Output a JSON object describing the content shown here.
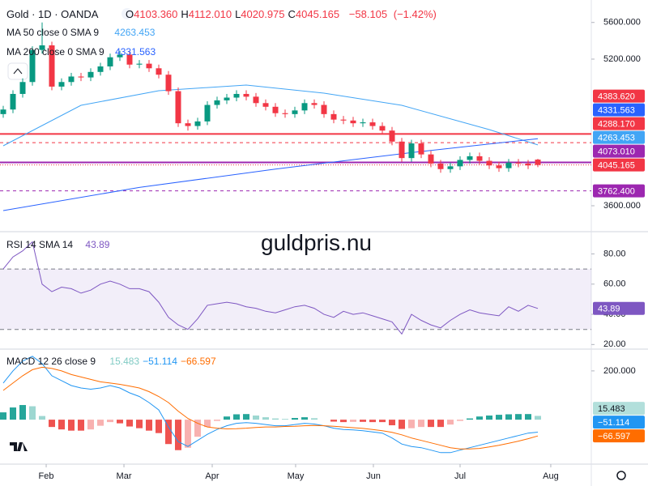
{
  "header": {
    "symbol": "Gold · 1D · OANDA",
    "ohlc_labels": [
      "O",
      "H",
      "L",
      "C"
    ],
    "ohlc_values": [
      4103.36,
      4112.01,
      4020.975,
      4045.165
    ],
    "ohlc_value_labels": [
      "4103.360",
      "4112.010",
      "4020.975",
      "4045.165"
    ],
    "change": -58.105,
    "change_label": "−58.105",
    "change_pct": -1.42,
    "change_pct_label": "(−1.42%)"
  },
  "watermark": "guldpris.nu",
  "chart_data": [
    {
      "type": "candlestick",
      "up_color": "#089981",
      "down_color": "#f23645",
      "open": [
        4600,
        4650,
        4820,
        4950,
        5300,
        5350,
        4900,
        4950,
        5010,
        5000,
        5060,
        5120,
        5220,
        5250,
        5140,
        5150,
        5100,
        5030,
        4850,
        4500,
        4470,
        4520,
        4700,
        4750,
        4780,
        4820,
        4790,
        4720,
        4680,
        4610,
        4600,
        4640,
        4720,
        4700,
        4600,
        4540,
        4530,
        4500,
        4510,
        4470,
        4420,
        4300,
        4120,
        4280,
        4160,
        4060,
        4000,
        4030,
        4100,
        4140,
        4090,
        4040,
        4010,
        4070,
        4060,
        4103.36
      ],
      "high": [
        4690,
        4860,
        4990,
        5340,
        5600,
        5390,
        4990,
        5050,
        5050,
        5100,
        5160,
        5260,
        5290,
        5290,
        5190,
        5190,
        5140,
        5070,
        4890,
        4540,
        4560,
        4740,
        4790,
        4820,
        4860,
        4860,
        4830,
        4760,
        4720,
        4650,
        4680,
        4760,
        4760,
        4740,
        4640,
        4580,
        4570,
        4550,
        4550,
        4510,
        4460,
        4340,
        4320,
        4320,
        4200,
        4100,
        4070,
        4140,
        4180,
        4180,
        4130,
        4080,
        4110,
        4110,
        4100,
        4112.01
      ],
      "low": [
        4560,
        4610,
        4780,
        4910,
        5260,
        4860,
        4860,
        4910,
        4960,
        4960,
        5020,
        5080,
        5180,
        5100,
        5100,
        5060,
        4990,
        4810,
        4460,
        4420,
        4430,
        4480,
        4660,
        4710,
        4740,
        4750,
        4680,
        4640,
        4570,
        4560,
        4560,
        4600,
        4660,
        4560,
        4500,
        4490,
        4460,
        4460,
        4430,
        4380,
        4260,
        4080,
        4080,
        4120,
        4020,
        3960,
        3960,
        3990,
        4060,
        4050,
        4000,
        3970,
        3970,
        4020,
        4000,
        4020.975
      ],
      "close": [
        4650,
        4820,
        4950,
        5300,
        5350,
        4900,
        4950,
        5010,
        5000,
        5060,
        5120,
        5220,
        5250,
        5140,
        5150,
        5100,
        5030,
        4850,
        4500,
        4470,
        4520,
        4700,
        4750,
        4780,
        4820,
        4790,
        4720,
        4680,
        4610,
        4600,
        4640,
        4720,
        4700,
        4600,
        4540,
        4530,
        4500,
        4510,
        4470,
        4420,
        4300,
        4120,
        4280,
        4160,
        4060,
        4000,
        4030,
        4100,
        4140,
        4090,
        4040,
        4010,
        4070,
        4060,
        4040,
        4045.165
      ],
      "xlim": [
        -0.333,
        60.5
      ],
      "xticks": [
        {
          "value": 4.42,
          "label": "Feb"
        },
        {
          "value": 12.42,
          "label": "Mar"
        },
        {
          "value": 21.5,
          "label": "Apr"
        },
        {
          "value": 30.08,
          "label": "May"
        },
        {
          "value": 38.08,
          "label": "Jun"
        },
        {
          "value": 47,
          "label": "Jul"
        },
        {
          "value": 56.33,
          "label": "Aug"
        }
      ],
      "ylim": [
        3326,
        5845
      ],
      "yticks": [
        {
          "value": 3600,
          "label": "3600.000"
        },
        {
          "value": 5200,
          "label": "5200.000"
        },
        {
          "value": 5600,
          "label": "5600.000"
        }
      ],
      "series": [
        {
          "name": "MA 50 close 0 SMA 9",
          "color": "#42a5f5",
          "x": [
            0,
            8,
            16,
            25,
            33,
            41,
            50,
            55
          ],
          "values": [
            4254,
            4696,
            4855,
            4917,
            4829,
            4696,
            4431,
            4263.453
          ],
          "last_label": "4263.453"
        },
        {
          "name": "MA 200 close 0 SMA 9",
          "color": "#2962ff",
          "x": [
            0,
            14,
            28,
            42,
            55
          ],
          "values": [
            3547,
            3800,
            4000,
            4180,
            4331.563
          ],
          "last_label": "4331.563"
        }
      ],
      "hlines": [
        {
          "value": 4383.62,
          "label": "4383.620",
          "color": "#f23645",
          "style": "solid"
        },
        {
          "value": 4288.17,
          "label": "4288.170",
          "color": "#f23645",
          "style": "dashed"
        },
        {
          "value": 4073.01,
          "label": "4073.010",
          "color": "#9c27b0",
          "style": "solid"
        },
        {
          "value": 4045.165,
          "label": "4045.165",
          "color": "#f23645",
          "style": "dotted"
        },
        {
          "value": 3762.4,
          "label": "3762.400",
          "color": "#9c27b0",
          "style": "dashed"
        }
      ]
    },
    {
      "type": "line",
      "ylim": [
        17.5,
        94.2
      ],
      "band": [
        30,
        70
      ],
      "yticks": [
        {
          "value": 80,
          "label": "80.00"
        },
        {
          "value": 60,
          "label": "60.00"
        },
        {
          "value": 40,
          "label": "40.00"
        },
        {
          "value": 20,
          "label": "20.00"
        }
      ],
      "series": [
        {
          "name": "RSI 14 SMA 14",
          "color": "#7e57c2",
          "values": [
            70,
            78,
            82,
            88,
            60,
            55,
            58,
            57,
            54,
            56,
            60,
            62,
            60,
            57,
            57,
            55,
            48,
            38,
            33,
            30,
            37,
            46,
            47,
            48,
            47,
            45,
            44,
            42,
            41,
            43,
            45,
            46,
            44,
            40,
            38,
            42,
            40,
            41,
            39,
            37,
            35,
            27,
            40,
            36,
            33,
            31,
            36,
            40,
            43,
            41,
            40,
            39,
            45,
            42,
            46,
            43.89
          ],
          "last_label": "43.89"
        }
      ]
    },
    {
      "type": "macd",
      "ylim": [
        -179,
        286
      ],
      "yticks": [
        {
          "value": 200,
          "label": "200.000"
        }
      ],
      "name": "MACD 12 26 close 9",
      "series": [
        {
          "name": "Histogram",
          "color": "#26a69a",
          "down_color": "#ef5350",
          "values": [
            30,
            50,
            60,
            55,
            15,
            -30,
            -40,
            -45,
            -45,
            -40,
            -25,
            -10,
            -15,
            -28,
            -35,
            -45,
            -55,
            -100,
            -125,
            -115,
            -70,
            -30,
            -5,
            13,
            22,
            23,
            17,
            10,
            5,
            3,
            7,
            10,
            6,
            0,
            -8,
            -10,
            -9,
            -9,
            -10,
            -10,
            -23,
            -38,
            -35,
            -30,
            -30,
            -30,
            -20,
            -5,
            5,
            13,
            17,
            20,
            22,
            23,
            23,
            15.483
          ],
          "last_label": "15.483"
        },
        {
          "name": "MACD",
          "color": "#2196f3",
          "values": [
            150,
            200,
            240,
            260,
            230,
            180,
            160,
            140,
            130,
            125,
            130,
            140,
            130,
            110,
            95,
            70,
            40,
            -30,
            -90,
            -110,
            -85,
            -60,
            -40,
            -25,
            -15,
            -12,
            -15,
            -20,
            -25,
            -25,
            -20,
            -15,
            -18,
            -25,
            -35,
            -40,
            -42,
            -45,
            -50,
            -55,
            -75,
            -100,
            -110,
            -115,
            -125,
            -135,
            -135,
            -125,
            -115,
            -105,
            -95,
            -85,
            -75,
            -65,
            -55,
            -51.114
          ],
          "last_label": "−51.114"
        },
        {
          "name": "Signal",
          "color": "#ff6d00",
          "values": [
            120,
            150,
            180,
            205,
            215,
            210,
            200,
            185,
            175,
            165,
            155,
            150,
            145,
            138,
            130,
            115,
            95,
            70,
            35,
            5,
            -15,
            -30,
            -35,
            -38,
            -37,
            -35,
            -32,
            -30,
            -30,
            -28,
            -27,
            -25,
            -24,
            -25,
            -27,
            -30,
            -33,
            -36,
            -40,
            -45,
            -52,
            -62,
            -75,
            -85,
            -95,
            -105,
            -115,
            -120,
            -120,
            -118,
            -112,
            -105,
            -97,
            -88,
            -78,
            -66.597
          ],
          "last_label": "−66.597"
        }
      ]
    }
  ]
}
